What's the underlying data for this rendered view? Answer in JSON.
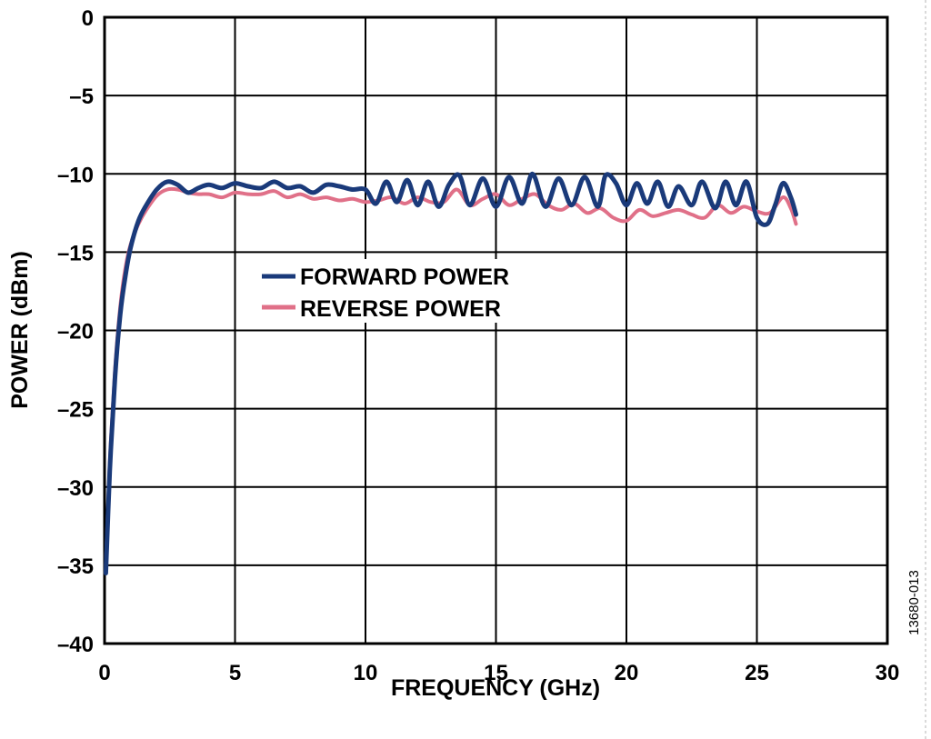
{
  "chart_data": {
    "type": "line",
    "title": "",
    "xlabel": "FREQUENCY (GHz)",
    "ylabel": "POWER (dBm)",
    "xlim": [
      0,
      30
    ],
    "ylim": [
      -40,
      0
    ],
    "xticks": [
      0,
      5,
      10,
      15,
      20,
      25,
      30
    ],
    "yticks": [
      0,
      -5,
      -10,
      -15,
      -20,
      -25,
      -30,
      -35,
      -40
    ],
    "xtick_labels": [
      "0",
      "5",
      "10",
      "15",
      "20",
      "25",
      "30"
    ],
    "ytick_labels": [
      "0",
      "–5",
      "–10",
      "–15",
      "–20",
      "–25",
      "–30",
      "–35",
      "–40"
    ],
    "grid": true,
    "legend_position": "center-left",
    "figure_id": "13680-013",
    "series": [
      {
        "name": "FORWARD POWER",
        "color": "#1a3a7a",
        "x": [
          0.05,
          0.2,
          0.4,
          0.6,
          0.8,
          1.0,
          1.3,
          1.6,
          2.0,
          2.4,
          2.8,
          3.2,
          3.6,
          4.0,
          4.5,
          5.0,
          5.5,
          6.0,
          6.5,
          7.0,
          7.5,
          8.0,
          8.5,
          9.0,
          9.5,
          10.0,
          10.4,
          10.8,
          11.2,
          11.6,
          12.0,
          12.4,
          12.8,
          13.2,
          13.6,
          14.0,
          14.5,
          15.0,
          15.5,
          16.0,
          16.4,
          16.9,
          17.4,
          17.9,
          18.4,
          18.9,
          19.2,
          19.6,
          20.0,
          20.4,
          20.8,
          21.2,
          21.6,
          22.0,
          22.5,
          22.9,
          23.4,
          23.8,
          24.2,
          24.6,
          25.0,
          25.4,
          25.7,
          26.0,
          26.3,
          26.5
        ],
        "y": [
          -35.5,
          -29.0,
          -23.0,
          -19.0,
          -16.5,
          -14.7,
          -13.0,
          -12.0,
          -11.0,
          -10.5,
          -10.7,
          -11.2,
          -10.9,
          -10.7,
          -10.9,
          -10.6,
          -10.8,
          -10.9,
          -10.5,
          -10.9,
          -10.8,
          -11.2,
          -10.7,
          -10.8,
          -11.0,
          -11.0,
          -11.9,
          -10.5,
          -11.8,
          -10.4,
          -12.0,
          -10.5,
          -12.1,
          -10.7,
          -10.1,
          -12.0,
          -10.3,
          -12.1,
          -10.2,
          -11.9,
          -10.0,
          -12.1,
          -10.3,
          -12.0,
          -10.2,
          -12.1,
          -10.1,
          -10.6,
          -12.0,
          -10.6,
          -11.9,
          -10.5,
          -12.1,
          -10.8,
          -12.0,
          -10.5,
          -12.2,
          -10.5,
          -12.0,
          -10.5,
          -12.8,
          -13.2,
          -12.0,
          -10.6,
          -11.5,
          -12.6
        ]
      },
      {
        "name": "REVERSE POWER",
        "color": "#e07088",
        "x": [
          0.05,
          0.2,
          0.4,
          0.6,
          0.8,
          1.0,
          1.3,
          1.6,
          2.0,
          2.4,
          2.8,
          3.2,
          3.6,
          4.0,
          4.5,
          5.0,
          5.5,
          6.0,
          6.5,
          7.0,
          7.5,
          8.0,
          8.5,
          9.0,
          9.5,
          10.0,
          10.5,
          11.0,
          11.5,
          12.0,
          12.5,
          13.0,
          13.5,
          14.0,
          14.5,
          15.0,
          15.5,
          16.0,
          16.5,
          17.0,
          17.5,
          18.0,
          18.5,
          19.0,
          19.5,
          20.0,
          20.5,
          21.0,
          21.5,
          22.0,
          22.5,
          23.0,
          23.5,
          24.0,
          24.5,
          25.0,
          25.5,
          26.0,
          26.3,
          26.5
        ],
        "y": [
          -35.0,
          -28.5,
          -22.5,
          -18.5,
          -16.0,
          -14.5,
          -13.2,
          -12.3,
          -11.4,
          -11.0,
          -11.0,
          -11.2,
          -11.3,
          -11.3,
          -11.5,
          -11.2,
          -11.3,
          -11.3,
          -11.1,
          -11.5,
          -11.3,
          -11.6,
          -11.5,
          -11.7,
          -11.6,
          -11.8,
          -11.7,
          -11.5,
          -11.9,
          -11.5,
          -11.8,
          -11.8,
          -11.0,
          -12.0,
          -11.6,
          -11.3,
          -12.0,
          -11.6,
          -11.3,
          -12.0,
          -12.3,
          -11.9,
          -12.5,
          -12.2,
          -12.8,
          -13.0,
          -12.3,
          -12.7,
          -12.5,
          -12.3,
          -12.6,
          -12.8,
          -12.0,
          -12.5,
          -12.1,
          -12.4,
          -12.5,
          -11.5,
          -12.2,
          -13.2
        ]
      }
    ]
  }
}
